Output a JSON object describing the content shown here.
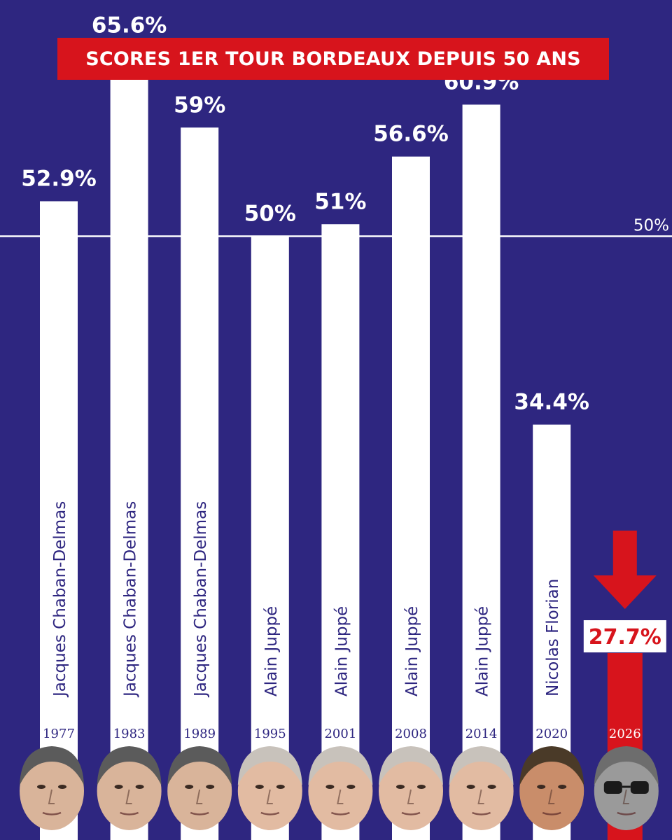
{
  "chart_data": {
    "type": "bar",
    "title": "SCORES 1ER TOUR BORDEAUX DEPUIS 50 ANS",
    "categories": [
      "1977",
      "1983",
      "1989",
      "1995",
      "2001",
      "2008",
      "2014",
      "2020",
      "2026"
    ],
    "candidates": [
      "Jacques Chaban-Delmas",
      "Jacques Chaban-Delmas",
      "Jacques Chaban-Delmas",
      "Alain Juppé",
      "Alain Juppé",
      "Alain Juppé",
      "Alain Juppé",
      "Nicolas Florian",
      ""
    ],
    "values": [
      52.9,
      65.6,
      59,
      50,
      51,
      56.6,
      60.9,
      34.4,
      27.7
    ],
    "value_labels": [
      "52.9%",
      "65.6%",
      "59%",
      "50%",
      "51%",
      "56.6%",
      "60.9%",
      "34.4%",
      "27.7%"
    ],
    "reference_line": {
      "value": 50,
      "label": "50%"
    },
    "highlight_index": 8,
    "colors": {
      "background": "#2e2680",
      "bar": "#ffffff",
      "highlight": "#d7141c",
      "title_bg": "#d7141c",
      "text": "#ffffff",
      "inner_text": "#2e2680"
    },
    "portraits": [
      "chaban-delmas-portrait",
      "chaban-delmas-portrait",
      "chaban-delmas-portrait",
      "juppe-portrait",
      "juppe-portrait",
      "juppe-portrait",
      "juppe-portrait",
      "florian-portrait",
      "glasses-man-portrait"
    ]
  }
}
